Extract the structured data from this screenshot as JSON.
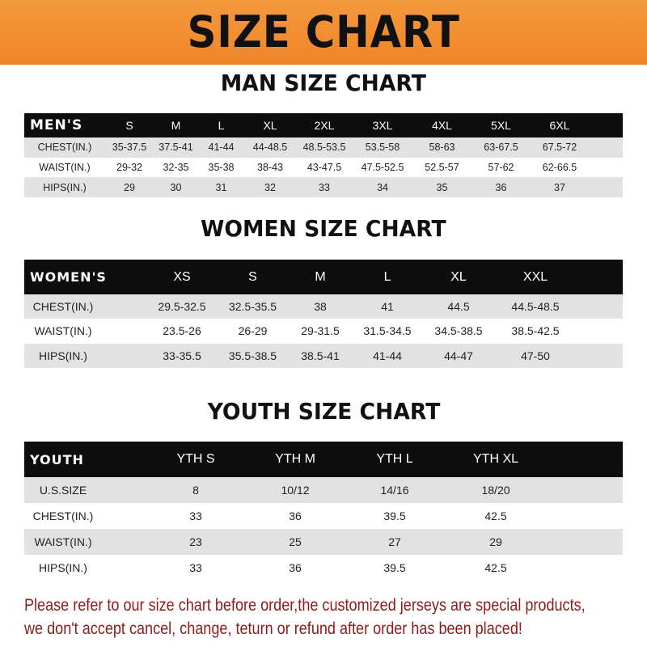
{
  "banner_title": "SIZE CHART",
  "men": {
    "title": "MAN SIZE CHART",
    "header": [
      "MEN'S",
      "S",
      "M",
      "L",
      "XL",
      "2XL",
      "3XL",
      "4XL",
      "5XL",
      "6XL"
    ],
    "rows": [
      [
        "CHEST(IN.)",
        "35-37.5",
        "37.5-41",
        "41-44",
        "44-48.5",
        "48.5-53.5",
        "53.5-58",
        "58-63",
        "63-67.5",
        "67.5-72"
      ],
      [
        "WAIST(IN.)",
        "29-32",
        "32-35",
        "35-38",
        "38-43",
        "43-47.5",
        "47.5-52.5",
        "52.5-57",
        "57-62",
        "62-66.5"
      ],
      [
        "HIPS(IN.)",
        "29",
        "30",
        "31",
        "32",
        "33",
        "34",
        "35",
        "36",
        "37"
      ]
    ]
  },
  "women": {
    "title": "WOMEN SIZE CHART",
    "header": [
      "WOMEN'S",
      "XS",
      "S",
      "M",
      "L",
      "XL",
      "XXL"
    ],
    "rows": [
      [
        "CHEST(IN.)",
        "29.5-32.5",
        "32.5-35.5",
        "38",
        "41",
        "44.5",
        "44.5-48.5"
      ],
      [
        "WAIST(IN.)",
        "23.5-26",
        "26-29",
        "29-31.5",
        "31.5-34.5",
        "34.5-38.5",
        "38.5-42.5"
      ],
      [
        "HIPS(IN.)",
        "33-35.5",
        "35.5-38.5",
        "38.5-41",
        "41-44",
        "44-47",
        "47-50"
      ]
    ]
  },
  "youth": {
    "title": "YOUTH SIZE CHART",
    "header": [
      "YOUTH",
      "YTH S",
      "YTH M",
      "YTH L",
      "YTH XL"
    ],
    "rows": [
      [
        "U.S.SIZE",
        "8",
        "10/12",
        "14/16",
        "18/20"
      ],
      [
        "CHEST(IN.)",
        "33",
        "36",
        "39.5",
        "42.5"
      ],
      [
        "WAIST(IN.)",
        "23",
        "25",
        "27",
        "29"
      ],
      [
        "HIPS(IN.)",
        "33",
        "36",
        "39.5",
        "42.5"
      ]
    ]
  },
  "notice": {
    "line1": "Please refer to our size chart before order,the customized jerseys are special products,",
    "line2": "we don't accept cancel, change, teturn or refund after order has been placed!"
  },
  "colors": {
    "banner": "#ef8427",
    "header_row": "#0d0d0d",
    "stripe": "#e2e2e2",
    "notice_text": "#8e1b1b"
  }
}
